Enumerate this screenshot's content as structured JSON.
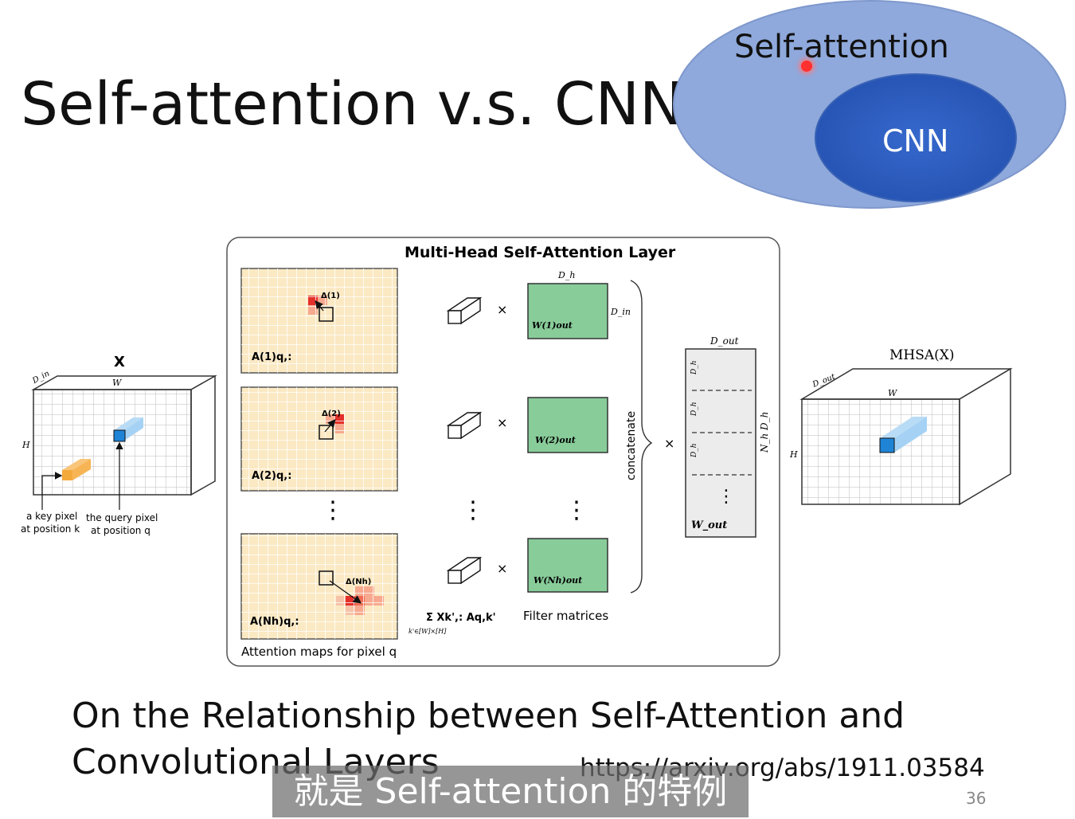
{
  "slide": {
    "title": "Self-attention v.s. CNN",
    "page_number": "36",
    "subtitle_caption": "就是 Self-attention 的特例"
  },
  "venn": {
    "outer_label": "Self-attention",
    "inner_label": "CNN",
    "outer_color": "#8fa9dc",
    "inner_color": "#2f5fc4"
  },
  "reference": {
    "line1": "On the Relationship between Self-Attention and",
    "line2": "Convolutional Layers",
    "url": "https://arxiv.org/abs/1911.03584"
  },
  "figure": {
    "panel_title": "Multi-Head Self-Attention Layer",
    "input_label": "X",
    "input_din": "D_in",
    "input_w": "W",
    "input_h": "H",
    "key_pixel_line1": "a key pixel",
    "key_pixel_line2": "at position k",
    "query_pixel_line1": "the query pixel",
    "query_pixel_line2": "at position q",
    "attention_maps": [
      {
        "label": "A(1)q,:",
        "delta": "Δ(1)"
      },
      {
        "label": "A(2)q,:",
        "delta": "Δ(2)"
      },
      {
        "label": "A(Nh)q,:",
        "delta": "Δ(Nh)"
      }
    ],
    "attention_caption": "Attention maps for pixel q",
    "sum_label": "Σ Xk',: Aq,k'",
    "sum_sub": "k'∈[W]×[H]",
    "filters": [
      {
        "label": "W(1)out"
      },
      {
        "label": "W(2)out"
      },
      {
        "label": "W(Nh)out"
      }
    ],
    "filter_dh": "D_h",
    "filter_din": "D_in",
    "filter_caption": "Filter matrices",
    "times": "×",
    "concatenate": "concatenate",
    "wout_dout": "D_out",
    "wout_label": "W_out",
    "wout_side": "N_h D_h",
    "wout_row": "D_h",
    "output_label": "MHSA(X)",
    "output_dout": "D_out",
    "output_w": "W",
    "output_h": "H",
    "dots": "⋮"
  },
  "colors": {
    "heatmap_bg": "#fbe9c4",
    "heat_dark": "#e4302a",
    "heat_light": "#f6a98e",
    "filter_green": "#88cc9a",
    "query_blue": "#1f84d6",
    "key_orange": "#f4a93c"
  }
}
